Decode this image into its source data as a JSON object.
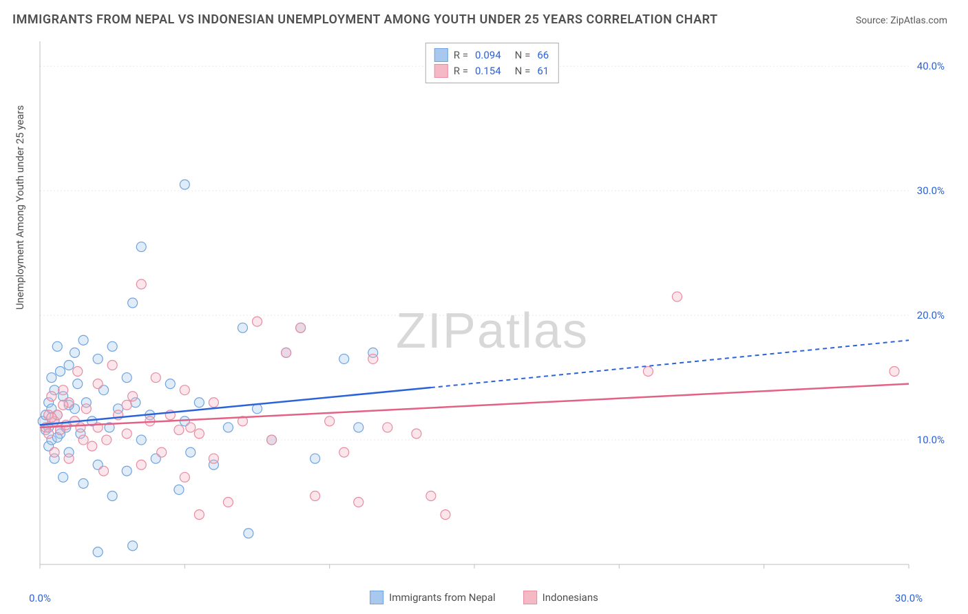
{
  "title": "IMMIGRANTS FROM NEPAL VS INDONESIAN UNEMPLOYMENT AMONG YOUTH UNDER 25 YEARS CORRELATION CHART",
  "source": "Source: ZipAtlas.com",
  "y_axis_label": "Unemployment Among Youth under 25 years",
  "watermark_part1": "ZIP",
  "watermark_part2": "atlas",
  "chart": {
    "type": "scatter_correlation",
    "background_color": "#ffffff",
    "grid_color": "#e8e8e8",
    "axis_line_color": "#bfbfbf",
    "xlim": [
      0,
      30
    ],
    "ylim": [
      0,
      42
    ],
    "x_ticks": [
      0,
      5,
      10,
      15,
      20,
      25,
      30
    ],
    "x_tick_labels": {
      "0": "0.0%",
      "30": "30.0%"
    },
    "y_ticks": [
      10,
      20,
      30,
      40
    ],
    "y_tick_labels": {
      "10": "10.0%",
      "20": "20.0%",
      "30": "30.0%",
      "40": "40.0%"
    },
    "marker_radius": 7,
    "marker_stroke_width": 1.2,
    "marker_fill_opacity": 0.35,
    "series": [
      {
        "name": "Immigrants from Nepal",
        "color_fill": "#a8c8ee",
        "color_stroke": "#6da3e0",
        "line_color": "#2962d9",
        "R": "0.094",
        "N": "66",
        "trend_start": {
          "x": 0.0,
          "y": 11.2
        },
        "trend_solid_end": {
          "x": 13.5,
          "y": 14.2
        },
        "trend_dash_end": {
          "x": 30.0,
          "y": 18.0
        },
        "points": [
          [
            0.1,
            11.5
          ],
          [
            0.2,
            12.0
          ],
          [
            0.2,
            10.8
          ],
          [
            0.3,
            13.0
          ],
          [
            0.3,
            11.0
          ],
          [
            0.3,
            9.5
          ],
          [
            0.4,
            12.5
          ],
          [
            0.4,
            10.0
          ],
          [
            0.5,
            14.0
          ],
          [
            0.5,
            11.5
          ],
          [
            0.5,
            8.5
          ],
          [
            0.6,
            17.5
          ],
          [
            0.6,
            12.0
          ],
          [
            0.7,
            15.5
          ],
          [
            0.7,
            10.5
          ],
          [
            0.8,
            7.0
          ],
          [
            0.8,
            13.5
          ],
          [
            0.9,
            11.0
          ],
          [
            1.0,
            16.0
          ],
          [
            1.0,
            9.0
          ],
          [
            1.2,
            17.0
          ],
          [
            1.2,
            12.5
          ],
          [
            1.3,
            14.5
          ],
          [
            1.4,
            10.5
          ],
          [
            1.5,
            18.0
          ],
          [
            1.5,
            6.5
          ],
          [
            1.6,
            13.0
          ],
          [
            1.8,
            11.5
          ],
          [
            2.0,
            16.5
          ],
          [
            2.0,
            8.0
          ],
          [
            2.2,
            14.0
          ],
          [
            2.4,
            11.0
          ],
          [
            2.5,
            17.5
          ],
          [
            2.5,
            5.5
          ],
          [
            2.7,
            12.5
          ],
          [
            3.0,
            15.0
          ],
          [
            3.0,
            7.5
          ],
          [
            3.2,
            21.0
          ],
          [
            3.3,
            13.0
          ],
          [
            3.5,
            10.0
          ],
          [
            3.5,
            25.5
          ],
          [
            3.8,
            12.0
          ],
          [
            4.0,
            8.5
          ],
          [
            4.5,
            14.5
          ],
          [
            4.8,
            6.0
          ],
          [
            5.0,
            30.5
          ],
          [
            5.0,
            11.5
          ],
          [
            5.2,
            9.0
          ],
          [
            5.5,
            13.0
          ],
          [
            6.0,
            8.0
          ],
          [
            6.5,
            11.0
          ],
          [
            7.0,
            19.0
          ],
          [
            7.2,
            2.5
          ],
          [
            7.5,
            12.5
          ],
          [
            8.0,
            10.0
          ],
          [
            8.5,
            17.0
          ],
          [
            9.0,
            19.0
          ],
          [
            9.5,
            8.5
          ],
          [
            10.5,
            16.5
          ],
          [
            11.0,
            11.0
          ],
          [
            11.5,
            17.0
          ],
          [
            2.0,
            1.0
          ],
          [
            3.2,
            1.5
          ],
          [
            0.4,
            15.0
          ],
          [
            1.0,
            12.8
          ],
          [
            0.6,
            10.2
          ]
        ]
      },
      {
        "name": "Indonesians",
        "color_fill": "#f5b8c5",
        "color_stroke": "#e88b9f",
        "line_color": "#e26184",
        "R": "0.154",
        "N": "61",
        "trend_start": {
          "x": 0.0,
          "y": 11.0
        },
        "trend_solid_end": {
          "x": 30.0,
          "y": 14.5
        },
        "trend_dash_end": null,
        "points": [
          [
            0.2,
            11.0
          ],
          [
            0.3,
            12.0
          ],
          [
            0.3,
            10.5
          ],
          [
            0.4,
            13.5
          ],
          [
            0.5,
            11.5
          ],
          [
            0.5,
            9.0
          ],
          [
            0.6,
            12.0
          ],
          [
            0.7,
            10.8
          ],
          [
            0.8,
            14.0
          ],
          [
            0.9,
            11.2
          ],
          [
            1.0,
            13.0
          ],
          [
            1.0,
            8.5
          ],
          [
            1.2,
            11.5
          ],
          [
            1.3,
            15.5
          ],
          [
            1.5,
            10.0
          ],
          [
            1.6,
            12.5
          ],
          [
            1.8,
            9.5
          ],
          [
            2.0,
            14.5
          ],
          [
            2.0,
            11.0
          ],
          [
            2.2,
            7.5
          ],
          [
            2.5,
            16.0
          ],
          [
            2.7,
            12.0
          ],
          [
            3.0,
            10.5
          ],
          [
            3.2,
            13.5
          ],
          [
            3.5,
            8.0
          ],
          [
            3.5,
            22.5
          ],
          [
            3.8,
            11.5
          ],
          [
            4.0,
            15.0
          ],
          [
            4.2,
            9.0
          ],
          [
            4.5,
            12.0
          ],
          [
            5.0,
            14.0
          ],
          [
            5.0,
            7.0
          ],
          [
            5.2,
            11.0
          ],
          [
            5.5,
            10.5
          ],
          [
            5.5,
            4.0
          ],
          [
            6.0,
            8.5
          ],
          [
            6.0,
            13.0
          ],
          [
            6.5,
            5.0
          ],
          [
            7.0,
            11.5
          ],
          [
            7.5,
            19.5
          ],
          [
            8.0,
            10.0
          ],
          [
            8.5,
            17.0
          ],
          [
            9.0,
            19.0
          ],
          [
            9.5,
            5.5
          ],
          [
            10.0,
            11.5
          ],
          [
            10.5,
            9.0
          ],
          [
            11.0,
            5.0
          ],
          [
            11.5,
            16.5
          ],
          [
            12.0,
            11.0
          ],
          [
            13.0,
            10.5
          ],
          [
            13.5,
            5.5
          ],
          [
            14.0,
            4.0
          ],
          [
            22.0,
            21.5
          ],
          [
            21.0,
            15.5
          ],
          [
            29.5,
            15.5
          ],
          [
            0.4,
            11.8
          ],
          [
            0.8,
            12.8
          ],
          [
            1.4,
            11.0
          ],
          [
            2.3,
            10.0
          ],
          [
            3.0,
            12.8
          ],
          [
            4.8,
            10.8
          ]
        ]
      }
    ]
  },
  "bottom_legend": [
    {
      "label": "Immigrants from Nepal",
      "fill": "#a8c8ee",
      "stroke": "#6da3e0"
    },
    {
      "label": "Indonesians",
      "fill": "#f5b8c5",
      "stroke": "#e88b9f"
    }
  ]
}
